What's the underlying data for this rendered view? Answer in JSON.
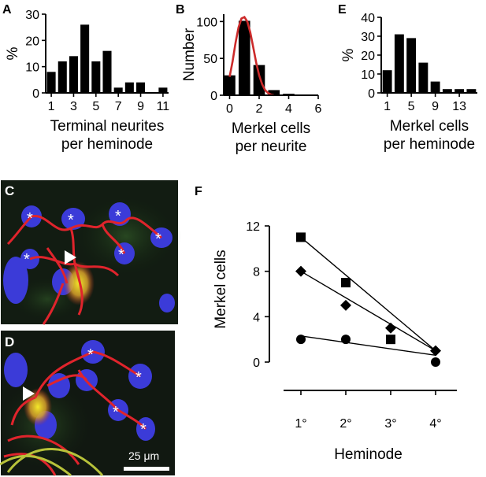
{
  "panels": {
    "A": "A",
    "B": "B",
    "E": "E",
    "C": "C",
    "D": "D",
    "F": "F"
  },
  "scale_bar_label": "25 μm",
  "micrograph_marker": "*",
  "chart_data": [
    {
      "id": "A",
      "type": "bar",
      "x": [
        1,
        2,
        3,
        4,
        5,
        6,
        7,
        8,
        9,
        10,
        11
      ],
      "values": [
        8,
        12,
        14,
        26,
        12,
        16,
        2,
        4,
        4,
        0,
        2
      ],
      "xticks": [
        "1",
        "3",
        "5",
        "7",
        "9",
        "11"
      ],
      "xtick_values": [
        1,
        3,
        5,
        7,
        9,
        11
      ],
      "yticks": [
        "0",
        "10",
        "20",
        "30"
      ],
      "ylim": [
        0,
        30
      ],
      "xlim": [
        0.5,
        11.5
      ],
      "ylabel": "%",
      "xlabel": [
        "Terminal neurites",
        "per heminode"
      ]
    },
    {
      "id": "B",
      "type": "bar",
      "x": [
        0,
        1,
        2,
        3,
        4,
        5
      ],
      "values": [
        27,
        101,
        41,
        7,
        2,
        1
      ],
      "curve": {
        "type": "line",
        "color": "#cc2b2b",
        "x": [
          0,
          0.2,
          0.4,
          0.6,
          0.8,
          1,
          1.2,
          1.4,
          1.6,
          1.8,
          2,
          2.2,
          2.4,
          2.6,
          2.8,
          3
        ],
        "y": [
          25,
          46,
          71,
          92,
          104,
          106,
          100,
          85,
          65,
          44,
          27,
          15,
          7,
          3,
          1,
          0
        ]
      },
      "xticks": [
        "0",
        "2",
        "4",
        "6"
      ],
      "xtick_values": [
        0,
        2,
        4,
        6
      ],
      "yticks": [
        "0",
        "50",
        "100"
      ],
      "ylim": [
        0,
        110
      ],
      "xlim": [
        -0.4,
        6
      ],
      "ylabel": "Number",
      "xlabel": [
        "Merkel cells",
        "per neurite"
      ]
    },
    {
      "id": "E",
      "type": "bar",
      "x": [
        1,
        3,
        5,
        7,
        9,
        11,
        13,
        15
      ],
      "values": [
        12,
        31,
        29,
        16,
        6,
        2,
        2,
        2
      ],
      "xticks": [
        "1",
        "5",
        "9",
        "13"
      ],
      "xtick_values": [
        1,
        5,
        9,
        13
      ],
      "yticks": [
        "0",
        "10",
        "20",
        "30",
        "40"
      ],
      "ylim": [
        0,
        40
      ],
      "xlim": [
        0,
        16
      ],
      "ylabel": "%",
      "xlabel": [
        "Merkel cells",
        "per heminode"
      ]
    },
    {
      "id": "F",
      "type": "scatter",
      "categories": [
        "1°",
        "2°",
        "3°",
        "4°"
      ],
      "series": [
        {
          "marker": "square",
          "values": [
            11,
            7,
            2,
            null
          ],
          "fit": [
            [
              1,
              11
            ],
            [
              4,
              1
            ]
          ]
        },
        {
          "marker": "diamond",
          "values": [
            8,
            5,
            3,
            1
          ],
          "fit": [
            [
              1,
              8
            ],
            [
              4,
              1
            ]
          ]
        },
        {
          "marker": "circle",
          "values": [
            2,
            2,
            null,
            0
          ],
          "fit": [
            [
              1,
              2.3
            ],
            [
              4,
              0.6
            ]
          ]
        }
      ],
      "yticks": [
        "0",
        "4",
        "8",
        "12"
      ],
      "ylim": [
        0,
        12
      ],
      "ylabel": "Merkel cells",
      "xlabel": "Heminode"
    }
  ]
}
